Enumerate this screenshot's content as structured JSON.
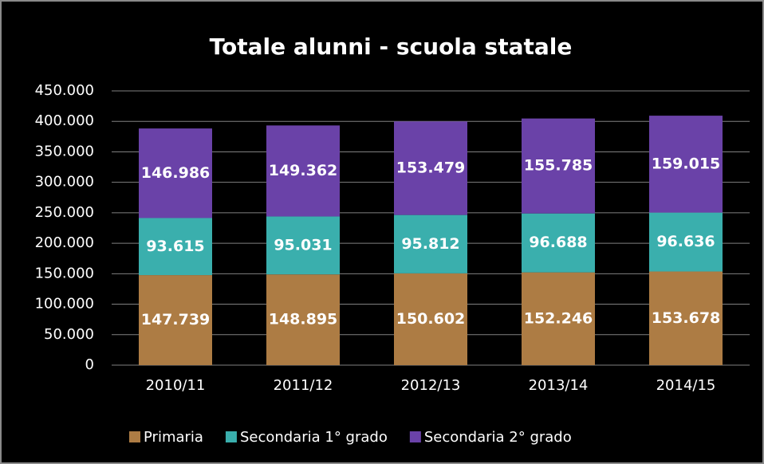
{
  "chart_data": {
    "type": "stacked_bar",
    "title": "Totale alunni - scuola statale",
    "categories": [
      "2010/11",
      "2011/12",
      "2012/13",
      "2013/14",
      "2014/15"
    ],
    "series": [
      {
        "name": "Primaria",
        "color": "#ad7c44",
        "values": [
          147739,
          148895,
          150602,
          152246,
          153678
        ],
        "value_labels": [
          "147.739",
          "148.895",
          "150.602",
          "152.246",
          "153.678"
        ]
      },
      {
        "name": "Secondaria 1° grado",
        "color": "#3aafad",
        "values": [
          93615,
          95031,
          95812,
          96688,
          96636
        ],
        "value_labels": [
          "93.615",
          "95.031",
          "95.812",
          "96.688",
          "96.636"
        ]
      },
      {
        "name": "Secondaria 2° grado",
        "color": "#6a42a8",
        "values": [
          146986,
          149362,
          153479,
          155785,
          159015
        ],
        "value_labels": [
          "146.986",
          "149.362",
          "153.479",
          "155.785",
          "159.015"
        ]
      }
    ],
    "ylim": [
      0,
      450000
    ],
    "yticks": [
      0,
      {
        "value": 50000,
        "label": "50.000"
      },
      {
        "value": 100000,
        "label": "100.000"
      },
      {
        "value": 150000,
        "label": "150.000"
      },
      {
        "value": 200000,
        "label": "200.000"
      },
      {
        "value": 250000,
        "label": "250.000"
      },
      {
        "value": 300000,
        "label": "300.000"
      },
      {
        "value": 350000,
        "label": "350.000"
      },
      {
        "value": 400000,
        "label": "400.000"
      },
      {
        "value": 450000,
        "label": "450.000"
      }
    ],
    "grid": true,
    "legend": "bottom"
  }
}
